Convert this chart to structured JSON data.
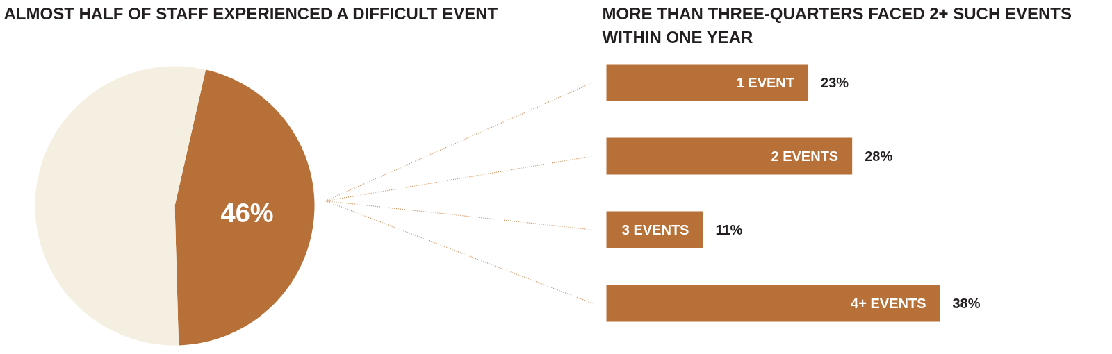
{
  "chart_data": [
    {
      "type": "pie",
      "title": "ALMOST HALF OF STAFF EXPERIENCED A DIFFICULT EVENT",
      "categories": [
        null,
        null
      ],
      "values": [
        46,
        54
      ],
      "colors": [
        "#b77038",
        "#f5efe1"
      ],
      "value_labels": [
        "46%",
        null
      ]
    },
    {
      "type": "bar",
      "orientation": "horizontal",
      "title": "MORE THAN THREE-QUARTERS FACED 2+ SUCH EVENTS WITHIN ONE YEAR",
      "categories": [
        "1 EVENT",
        "2 EVENTS",
        "3 EVENTS",
        "4+ EVENTS"
      ],
      "values": [
        23,
        28,
        11,
        38
      ],
      "color": "#b77038",
      "value_labels": [
        "23%",
        "28%",
        "11%",
        "38%"
      ]
    }
  ]
}
